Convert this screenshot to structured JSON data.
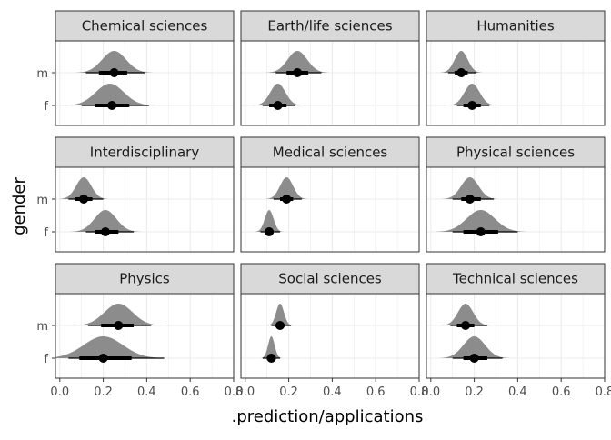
{
  "chart_data": {
    "type": "halfeye-facet",
    "xlabel": ".prediction/applications",
    "ylabel": "gender",
    "xlim": [
      -0.02,
      0.8
    ],
    "x_ticks": [
      0.0,
      0.2,
      0.4,
      0.6,
      0.8
    ],
    "x_tick_labels": [
      "0.0",
      "0.2",
      "0.4",
      "0.6",
      "0.8"
    ],
    "y_categories": [
      "m",
      "f"
    ],
    "grid": true,
    "colors": {
      "density": "#8c8c8c",
      "interval": "#000000",
      "strip": "#d9d9d9",
      "grid": "#ebebeb",
      "panel_border": "#333333"
    },
    "panels": [
      {
        "title": "Chemical sciences",
        "rows": [
          {
            "gender": "m",
            "median": 0.25,
            "inner": [
              0.18,
              0.31
            ],
            "outer": [
              0.12,
              0.39
            ],
            "sd": 0.055,
            "peak": 0.25
          },
          {
            "gender": "f",
            "median": 0.24,
            "inner": [
              0.16,
              0.32
            ],
            "outer": [
              0.1,
              0.41
            ],
            "sd": 0.065,
            "peak": 0.23
          }
        ]
      },
      {
        "title": "Earth/life sciences",
        "rows": [
          {
            "gender": "m",
            "median": 0.24,
            "inner": [
              0.19,
              0.29
            ],
            "outer": [
              0.14,
              0.35
            ],
            "sd": 0.045,
            "peak": 0.24
          },
          {
            "gender": "f",
            "median": 0.15,
            "inner": [
              0.11,
              0.19
            ],
            "outer": [
              0.08,
              0.23
            ],
            "sd": 0.035,
            "peak": 0.15
          }
        ]
      },
      {
        "title": "Humanities",
        "rows": [
          {
            "gender": "m",
            "median": 0.14,
            "inner": [
              0.11,
              0.17
            ],
            "outer": [
              0.08,
              0.21
            ],
            "sd": 0.03,
            "peak": 0.14
          },
          {
            "gender": "f",
            "median": 0.19,
            "inner": [
              0.15,
              0.23
            ],
            "outer": [
              0.12,
              0.27
            ],
            "sd": 0.035,
            "peak": 0.19
          }
        ]
      },
      {
        "title": "Interdisciplinary",
        "rows": [
          {
            "gender": "m",
            "median": 0.11,
            "inner": [
              0.07,
              0.15
            ],
            "outer": [
              0.04,
              0.2
            ],
            "sd": 0.035,
            "peak": 0.11
          },
          {
            "gender": "f",
            "median": 0.21,
            "inner": [
              0.16,
              0.27
            ],
            "outer": [
              0.12,
              0.34
            ],
            "sd": 0.05,
            "peak": 0.21
          }
        ]
      },
      {
        "title": "Medical sciences",
        "rows": [
          {
            "gender": "m",
            "median": 0.19,
            "inner": [
              0.16,
              0.22
            ],
            "outer": [
              0.13,
              0.26
            ],
            "sd": 0.03,
            "peak": 0.19
          },
          {
            "gender": "f",
            "median": 0.11,
            "inner": [
              0.09,
              0.13
            ],
            "outer": [
              0.07,
              0.16
            ],
            "sd": 0.02,
            "peak": 0.11
          }
        ]
      },
      {
        "title": "Physical sciences",
        "rows": [
          {
            "gender": "m",
            "median": 0.18,
            "inner": [
              0.14,
              0.23
            ],
            "outer": [
              0.1,
              0.29
            ],
            "sd": 0.04,
            "peak": 0.18
          },
          {
            "gender": "f",
            "median": 0.23,
            "inner": [
              0.15,
              0.31
            ],
            "outer": [
              0.1,
              0.4
            ],
            "sd": 0.065,
            "peak": 0.23
          }
        ]
      },
      {
        "title": "Physics",
        "rows": [
          {
            "gender": "m",
            "median": 0.27,
            "inner": [
              0.19,
              0.34
            ],
            "outer": [
              0.13,
              0.42
            ],
            "sd": 0.065,
            "peak": 0.27
          },
          {
            "gender": "f",
            "median": 0.2,
            "inner": [
              0.09,
              0.33
            ],
            "outer": [
              0.04,
              0.48
            ],
            "sd": 0.09,
            "peak": 0.2
          }
        ]
      },
      {
        "title": "Social sciences",
        "rows": [
          {
            "gender": "m",
            "median": 0.16,
            "inner": [
              0.14,
              0.18
            ],
            "outer": [
              0.12,
              0.21
            ],
            "sd": 0.018,
            "peak": 0.16
          },
          {
            "gender": "f",
            "median": 0.12,
            "inner": [
              0.1,
              0.14
            ],
            "outer": [
              0.08,
              0.16
            ],
            "sd": 0.015,
            "peak": 0.12
          }
        ]
      },
      {
        "title": "Technical sciences",
        "rows": [
          {
            "gender": "m",
            "median": 0.16,
            "inner": [
              0.12,
              0.2
            ],
            "outer": [
              0.09,
              0.26
            ],
            "sd": 0.035,
            "peak": 0.16
          },
          {
            "gender": "f",
            "median": 0.2,
            "inner": [
              0.15,
              0.26
            ],
            "outer": [
              0.1,
              0.33
            ],
            "sd": 0.05,
            "peak": 0.2
          }
        ]
      }
    ]
  }
}
